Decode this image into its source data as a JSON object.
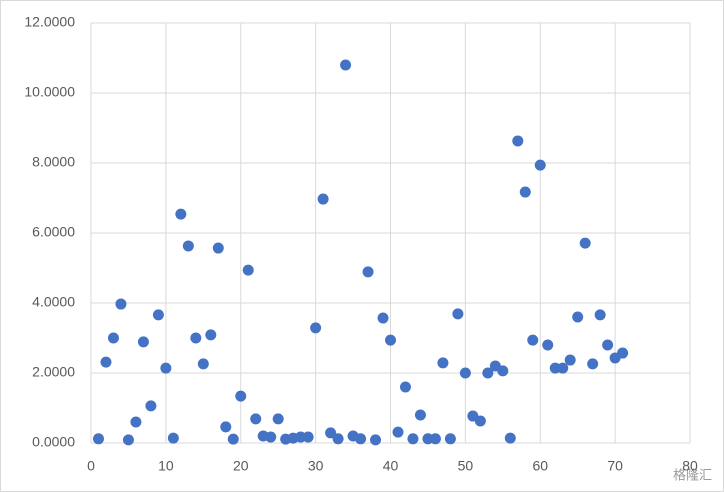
{
  "chart_data": {
    "type": "scatter",
    "x": [
      1,
      2,
      3,
      4,
      5,
      6,
      7,
      8,
      9,
      10,
      11,
      12,
      13,
      14,
      15,
      16,
      17,
      18,
      19,
      20,
      21,
      22,
      23,
      24,
      25,
      26,
      27,
      28,
      29,
      30,
      31,
      32,
      33,
      34,
      35,
      36,
      37,
      38,
      39,
      40,
      41,
      42,
      43,
      44,
      45,
      46,
      47,
      48,
      49,
      50,
      51,
      52,
      53,
      54,
      55,
      56,
      57,
      58,
      59,
      60,
      61,
      62,
      63,
      64,
      65,
      66,
      67,
      68,
      69,
      70,
      71
    ],
    "series": [
      {
        "color": "#4472c4",
        "values": [
          0.12,
          2.31,
          3.0,
          3.97,
          0.09,
          0.6,
          2.89,
          1.06,
          3.66,
          2.14,
          0.14,
          6.54,
          5.63,
          3.0,
          2.26,
          3.09,
          5.57,
          0.46,
          0.11,
          1.34,
          4.94,
          0.69,
          0.2,
          0.17,
          0.69,
          0.11,
          0.14,
          0.17,
          0.17,
          3.29,
          6.97,
          0.29,
          0.12,
          10.8,
          0.2,
          0.12,
          4.89,
          0.09,
          3.57,
          2.94,
          0.31,
          1.6,
          0.12,
          0.8,
          0.12,
          0.12,
          2.29,
          0.12,
          3.69,
          2.0,
          0.77,
          0.63,
          2.0,
          2.2,
          2.06,
          0.14,
          8.63,
          7.17,
          2.94,
          7.94,
          2.8,
          2.14,
          2.14,
          2.37,
          3.6,
          5.71,
          2.26,
          3.66,
          2.8,
          2.43,
          2.57
        ]
      }
    ],
    "xlim": [
      0,
      80
    ],
    "xticks": [
      0,
      10,
      20,
      30,
      40,
      50,
      60,
      70,
      80
    ],
    "ylim": [
      0,
      12
    ],
    "yticks": [
      {
        "value": 0,
        "label": "0.0000"
      },
      {
        "value": 2,
        "label": "2.0000"
      },
      {
        "value": 4,
        "label": "4.0000"
      },
      {
        "value": 6,
        "label": "6.0000"
      },
      {
        "value": 8,
        "label": "8.0000"
      },
      {
        "value": 10,
        "label": "10.0000"
      },
      {
        "value": 12,
        "label": "12.0000"
      }
    ],
    "grid": true,
    "watermark": "格隆汇"
  }
}
